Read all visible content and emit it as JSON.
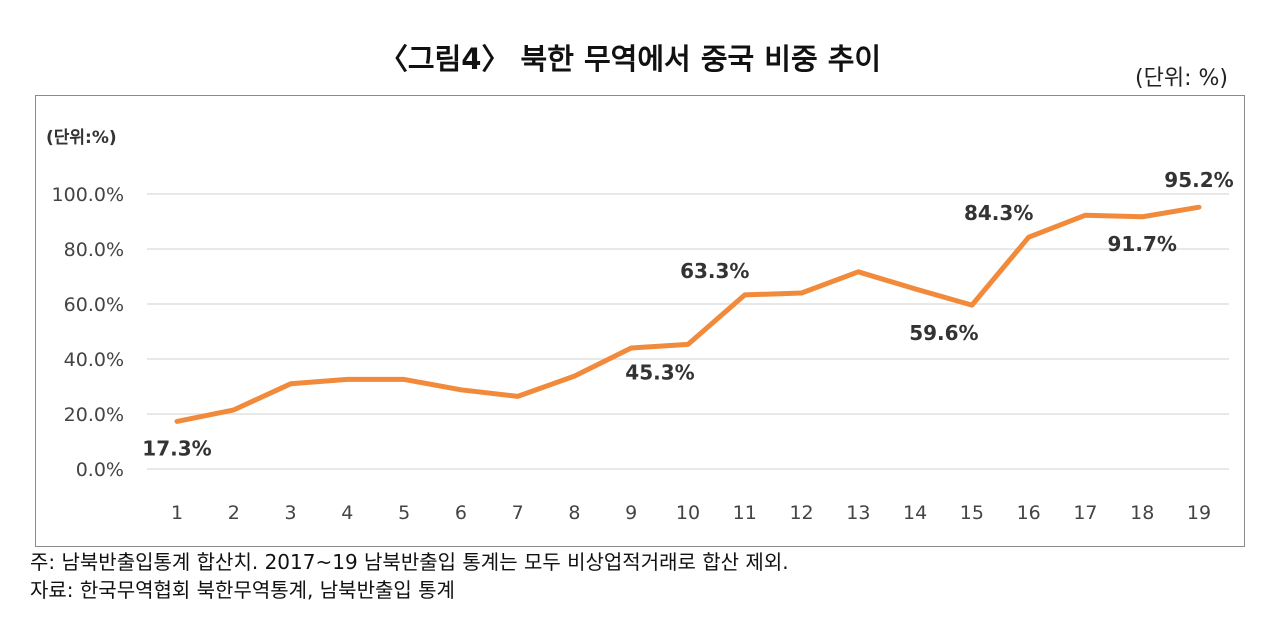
{
  "title": "〈그림4〉 북한 무역에서 중국 비중 추이",
  "unit_label": "(단위:  %)",
  "notes": [
    "주:  남북반출입통계  합산치.  2017~19  남북반출입  통계는  모두  비상업적거래로  합산  제외.",
    "자료:  한국무역협회  북한무역통계,  남북반출입  통계"
  ],
  "chart_data": {
    "type": "line",
    "unit_label": "(단위:%)",
    "categories": [
      "1",
      "2",
      "3",
      "4",
      "5",
      "6",
      "7",
      "8",
      "9",
      "10",
      "11",
      "12",
      "13",
      "14",
      "15",
      "16",
      "17",
      "18",
      "19"
    ],
    "series": [
      {
        "values": [
          17.3,
          21.5,
          31.0,
          32.6,
          32.6,
          28.8,
          26.4,
          33.8,
          44.0,
          45.3,
          63.3,
          64.0,
          71.7,
          65.5,
          59.6,
          84.3,
          92.3,
          91.7,
          95.2
        ]
      }
    ],
    "data_labels": [
      {
        "index": 0,
        "text": "17.3%",
        "pos": "below"
      },
      {
        "index": 9,
        "text": "45.3%",
        "pos": "below-left"
      },
      {
        "index": 10,
        "text": "63.3%",
        "pos": "above-left"
      },
      {
        "index": 14,
        "text": "59.6%",
        "pos": "below-left"
      },
      {
        "index": 15,
        "text": "84.3%",
        "pos": "above-left"
      },
      {
        "index": 17,
        "text": "91.7%",
        "pos": "below"
      },
      {
        "index": 18,
        "text": "95.2%",
        "pos": "above"
      }
    ],
    "yticks": [
      "0.0%",
      "20.0%",
      "40.0%",
      "60.0%",
      "80.0%",
      "100.0%"
    ],
    "ylim": [
      0,
      100
    ],
    "grid": true,
    "line_color": "#f28a3c",
    "grid_color": "#d9d9d9"
  }
}
